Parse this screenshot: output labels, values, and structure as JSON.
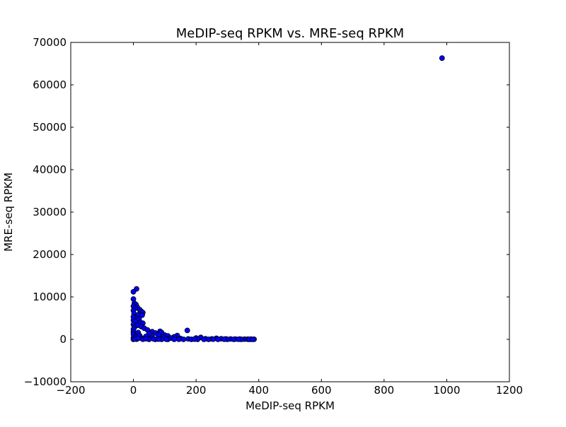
{
  "chart_data": {
    "type": "scatter",
    "title": "MeDIP-seq RPKM vs. MRE-seq RPKM",
    "xlabel": "MeDIP-seq RPKM",
    "ylabel": "MRE-seq RPKM",
    "xlim": [
      -200,
      1200
    ],
    "ylim": [
      -10000,
      70000
    ],
    "xticks": [
      -200,
      0,
      200,
      400,
      600,
      800,
      1000,
      1200
    ],
    "xtick_labels": [
      "−200",
      "0",
      "200",
      "400",
      "600",
      "800",
      "1000",
      "1200"
    ],
    "yticks": [
      -10000,
      0,
      10000,
      20000,
      30000,
      40000,
      50000,
      60000,
      70000
    ],
    "ytick_labels": [
      "−10000",
      "0",
      "10000",
      "20000",
      "30000",
      "40000",
      "50000",
      "60000",
      "70000"
    ],
    "grid": false,
    "colors": {
      "marker_fill": "#0000ff",
      "marker_edge": "#000000",
      "axes": "#000000",
      "background": "#ffffff"
    },
    "series": [
      {
        "points": [
          [
            985,
            66300
          ],
          [
            10,
            11900
          ],
          [
            0,
            11200
          ],
          [
            0,
            9500
          ],
          [
            3,
            8500
          ],
          [
            8,
            8200
          ],
          [
            0,
            7800
          ],
          [
            12,
            7600
          ],
          [
            5,
            7300
          ],
          [
            20,
            7000
          ],
          [
            0,
            6800
          ],
          [
            25,
            6600
          ],
          [
            30,
            6300
          ],
          [
            2,
            6000
          ],
          [
            15,
            5800
          ],
          [
            28,
            5700
          ],
          [
            0,
            5300
          ],
          [
            10,
            5000
          ],
          [
            18,
            4800
          ],
          [
            0,
            4500
          ],
          [
            6,
            4200
          ],
          [
            22,
            4000
          ],
          [
            30,
            3800
          ],
          [
            0,
            3500
          ],
          [
            12,
            3300
          ],
          [
            25,
            3000
          ],
          [
            3,
            2800
          ],
          [
            35,
            2600
          ],
          [
            0,
            2400
          ],
          [
            45,
            2200
          ],
          [
            172,
            2100
          ],
          [
            60,
            1800
          ],
          [
            85,
            1900
          ],
          [
            90,
            1600
          ],
          [
            70,
            1500
          ],
          [
            0,
            1800
          ],
          [
            15,
            1600
          ],
          [
            50,
            1300
          ],
          [
            100,
            1000
          ],
          [
            0,
            1200
          ],
          [
            110,
            800
          ],
          [
            140,
            900
          ],
          [
            20,
            900
          ],
          [
            80,
            1000
          ],
          [
            40,
            700
          ],
          [
            130,
            600
          ],
          [
            5,
            600
          ],
          [
            60,
            500
          ],
          [
            95,
            500
          ],
          [
            120,
            300
          ],
          [
            0,
            400
          ],
          [
            25,
            300
          ],
          [
            150,
            200
          ],
          [
            175,
            100
          ],
          [
            200,
            300
          ],
          [
            215,
            450
          ],
          [
            230,
            150
          ],
          [
            250,
            100
          ],
          [
            265,
            250
          ],
          [
            280,
            150
          ],
          [
            295,
            100
          ],
          [
            310,
            80
          ],
          [
            325,
            60
          ],
          [
            340,
            50
          ],
          [
            355,
            40
          ],
          [
            365,
            30
          ],
          [
            375,
            30
          ],
          [
            385,
            20
          ],
          [
            10,
            50
          ],
          [
            30,
            20
          ],
          [
            50,
            10
          ],
          [
            70,
            0
          ],
          [
            90,
            0
          ],
          [
            110,
            0
          ],
          [
            130,
            0
          ],
          [
            160,
            0
          ],
          [
            185,
            0
          ],
          [
            205,
            0
          ],
          [
            225,
            0
          ],
          [
            240,
            0
          ],
          [
            270,
            0
          ],
          [
            300,
            0
          ],
          [
            320,
            0
          ],
          [
            345,
            0
          ],
          [
            370,
            0
          ],
          [
            380,
            0
          ],
          [
            0,
            0
          ],
          [
            5,
            100
          ],
          [
            15,
            200
          ],
          [
            40,
            150
          ],
          [
            65,
            80
          ],
          [
            80,
            50
          ],
          [
            105,
            30
          ],
          [
            145,
            20
          ],
          [
            195,
            50
          ],
          [
            255,
            40
          ],
          [
            290,
            30
          ],
          [
            335,
            20
          ]
        ]
      }
    ]
  }
}
